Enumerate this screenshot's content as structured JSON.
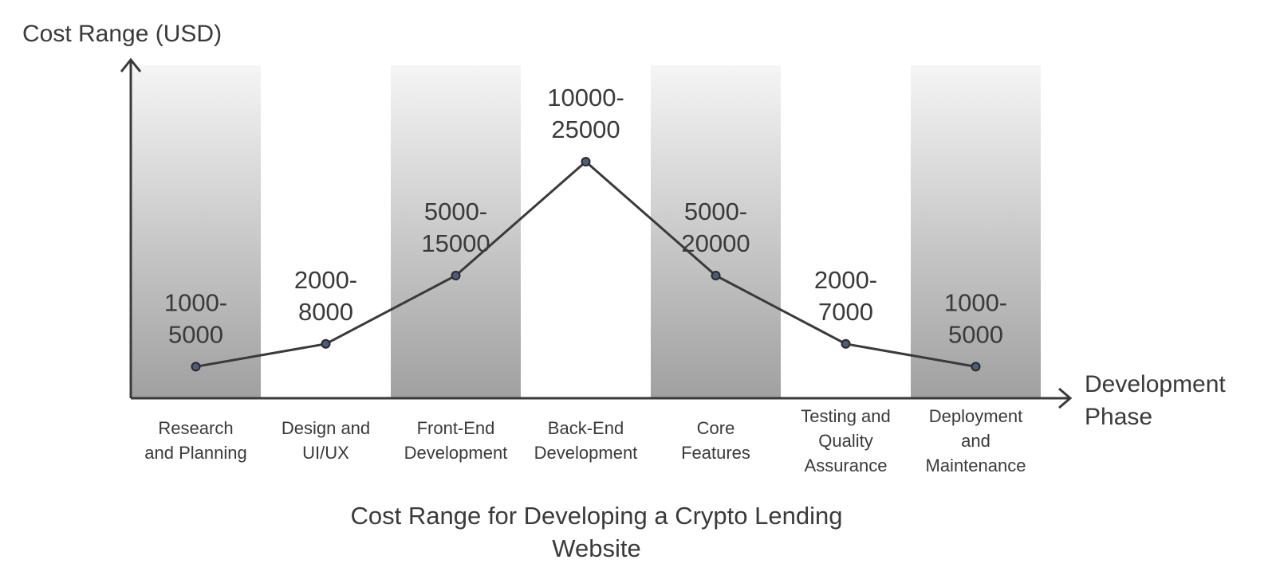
{
  "chart_data": {
    "type": "line",
    "title": "Cost Range for Developing a Crypto Lending Website",
    "ylabel": "Cost Range (USD)",
    "xlabel": "Development Phase",
    "grid": false,
    "categories": [
      "Research and Planning",
      "Design and UI/UX",
      "Front-End Development",
      "Back-End Development",
      "Core Features",
      "Testing and Quality Assurance",
      "Deployment and Maintenance"
    ],
    "ranges": [
      "1000-5000",
      "2000-8000",
      "5000-15000",
      "10000-25000",
      "5000-20000",
      "2000-7000",
      "1000-5000"
    ],
    "series": [
      {
        "values": [
          1000,
          2000,
          5000,
          10000,
          5000,
          2000,
          1000
        ]
      }
    ],
    "colors": {
      "line": "#3a3a3a",
      "marker": "#4a5d7a",
      "band_top": "#f5f5f5",
      "band_bottom": "#a0a0a0"
    }
  }
}
